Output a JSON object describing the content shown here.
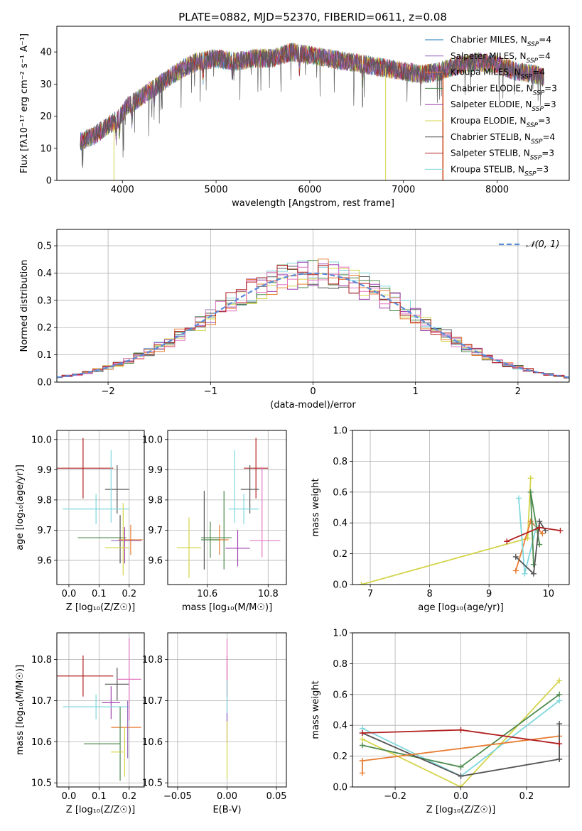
{
  "figure_title": "PLATE=0882, MJD=52370, FIBERID=0611, z=0.08",
  "colors": {
    "Chabrier MILES": "#1f77b4",
    "Salpeter MILES": "#9467bd",
    "Kroupa MILES": "#e87d33",
    "Chabrier ELODIE": "#4d8a4d",
    "Salpeter ELODIE": "#a040b0",
    "Kroupa ELODIE": "#d4d44a",
    "Chabrier STELIB": "#555555",
    "Salpeter STELIB": "#b22222",
    "Kroupa STELIB": "#7fd7dd",
    "pink": "#e377c2",
    "gaussian": "#5b8bd9"
  },
  "chart_data": [
    {
      "id": "spectrum",
      "type": "line",
      "title": "PLATE=0882, MJD=52370, FIBERID=0611, z=0.08",
      "xlabel": "wavelength [Angstrom, rest frame]",
      "ylabel": "Flux [fλ10⁻¹⁷ erg cm⁻² s⁻¹ A⁻¹]",
      "xlim": [
        3300,
        8770
      ],
      "ylim": [
        0,
        48
      ],
      "xticks": [
        4000,
        5000,
        6000,
        7000,
        8000
      ],
      "yticks": [
        0,
        10,
        20,
        30,
        40
      ],
      "legend_position": "top-right",
      "legend": [
        {
          "name": "Chabrier MILES",
          "sub": "SSP",
          "n": "=4",
          "color_key": "Chabrier MILES"
        },
        {
          "name": "Salpeter MILES",
          "sub": "SSP",
          "n": "=4",
          "color_key": "Salpeter MILES"
        },
        {
          "name": "Kroupa MILES",
          "sub": "SSP",
          "n": "=4",
          "color_key": "Kroupa MILES"
        },
        {
          "name": "Chabrier ELODIE",
          "sub": "SSP",
          "n": "=3",
          "color_key": "Chabrier ELODIE"
        },
        {
          "name": "Salpeter ELODIE",
          "sub": "SSP",
          "n": "=3",
          "color_key": "Salpeter ELODIE"
        },
        {
          "name": "Kroupa ELODIE",
          "sub": "SSP",
          "n": "=3",
          "color_key": "Kroupa ELODIE"
        },
        {
          "name": "Chabrier STELIB",
          "sub": "SSP",
          "n": "=4",
          "color_key": "Chabrier STELIB"
        },
        {
          "name": "Salpeter STELIB",
          "sub": "SSP",
          "n": "=3",
          "color_key": "Salpeter STELIB"
        },
        {
          "name": "Kroupa STELIB",
          "sub": "SSP",
          "n": "=3",
          "color_key": "Kroupa STELIB"
        }
      ],
      "continuum": [
        [
          3550,
          12
        ],
        [
          3700,
          14
        ],
        [
          3850,
          17
        ],
        [
          3950,
          19
        ],
        [
          4050,
          23
        ],
        [
          4200,
          26
        ],
        [
          4350,
          29
        ],
        [
          4500,
          32
        ],
        [
          4650,
          35
        ],
        [
          4800,
          37
        ],
        [
          5000,
          38
        ],
        [
          5200,
          37
        ],
        [
          5400,
          38
        ],
        [
          5600,
          38
        ],
        [
          5800,
          40
        ],
        [
          6000,
          39
        ],
        [
          6200,
          38
        ],
        [
          6400,
          37
        ],
        [
          6600,
          36
        ],
        [
          6800,
          35
        ],
        [
          7000,
          34
        ],
        [
          7200,
          33
        ],
        [
          7400,
          34
        ],
        [
          7600,
          36
        ],
        [
          7800,
          37
        ],
        [
          8000,
          36
        ],
        [
          8200,
          34
        ],
        [
          8400,
          33
        ],
        [
          8500,
          32
        ]
      ],
      "drops": [
        {
          "series": "Kroupa ELODIE",
          "x": 3910,
          "y_from": 18,
          "y_to": 0
        },
        {
          "series": "Kroupa ELODIE",
          "x": 6810,
          "y_from": 35,
          "y_to": 0
        },
        {
          "series": "Salpeter STELIB",
          "x": 7420,
          "y_from": 33,
          "y_to": 0
        },
        {
          "series": "Kroupa MILES",
          "x": 7425,
          "y_from": 33,
          "y_to": 0
        }
      ]
    },
    {
      "id": "residuals",
      "type": "line",
      "title": "",
      "xlabel": "(data-model)/error",
      "ylabel": "Normed distribution",
      "xlim": [
        -2.5,
        2.5
      ],
      "ylim": [
        0,
        0.56
      ],
      "xticks": [
        -2,
        -1,
        0,
        1,
        2
      ],
      "yticks": [
        0.0,
        0.1,
        0.2,
        0.3,
        0.4,
        0.5
      ],
      "grid": true,
      "legend_position": "top-right",
      "legend": [
        {
          "name": "𝒩(0, 1)",
          "style": "dashed",
          "color_key": "gaussian"
        }
      ],
      "bin_width": 0.1,
      "series": [
        {
          "color_key": "Kroupa STELIB",
          "offset": 0.0,
          "seed": 3
        },
        {
          "color_key": "Chabrier STELIB",
          "offset": 0.0,
          "seed": 7
        },
        {
          "color_key": "Chabrier ELODIE",
          "offset": 0.0,
          "seed": 11
        },
        {
          "color_key": "Kroupa ELODIE",
          "offset": 0.0,
          "seed": 13
        },
        {
          "color_key": "Salpeter ELODIE",
          "offset": 0.0,
          "seed": 17
        },
        {
          "color_key": "Kroupa MILES",
          "offset": 0.0,
          "seed": 19
        },
        {
          "color_key": "pink",
          "offset": 0.0,
          "seed": 23
        },
        {
          "color_key": "Salpeter STELIB",
          "offset": 0.0,
          "seed": 29
        }
      ]
    },
    {
      "id": "age_vs_Z",
      "type": "scatter",
      "title": "",
      "xlabel": "Z [log₁₀(Z/Z☉)]",
      "ylabel": "age  [log₁₀(age/yr)]",
      "xlim": [
        -0.04,
        0.25
      ],
      "ylim": [
        9.52,
        10.03
      ],
      "xticks": [
        0.0,
        0.1,
        0.2
      ],
      "yticks": [
        9.6,
        9.7,
        9.8,
        9.9,
        10.0
      ],
      "grid": true,
      "points": [
        {
          "x": 0.047,
          "y": 9.905,
          "xerr": 0.1,
          "yerr": 0.1,
          "color_key": "Salpeter STELIB"
        },
        {
          "x": 0.16,
          "y": 9.835,
          "xerr": 0.04,
          "yerr": 0.08,
          "color_key": "Chabrier STELIB"
        },
        {
          "x": 0.14,
          "y": 9.845,
          "xerr": 0.0,
          "yerr": 0.12,
          "color_key": "Kroupa STELIB"
        },
        {
          "x": 0.09,
          "y": 9.77,
          "xerr": 0.11,
          "yerr": 0.05,
          "color_key": "Kroupa STELIB"
        },
        {
          "x": 0.11,
          "y": 9.675,
          "xerr": 0.08,
          "yerr": 0.0,
          "color_key": "Chabrier ELODIE"
        },
        {
          "x": 0.17,
          "y": 9.67,
          "xerr": 0.0,
          "yerr": 0.08,
          "color_key": "Chabrier STELIB"
        },
        {
          "x": 0.205,
          "y": 9.668,
          "xerr": 0.04,
          "yerr": 0.05,
          "color_key": "Kroupa MILES"
        },
        {
          "x": 0.19,
          "y": 9.665,
          "xerr": 0.05,
          "yerr": 0.0,
          "color_key": "Salpeter MILES"
        },
        {
          "x": 0.185,
          "y": 9.65,
          "xerr": 0.0,
          "yerr": 0.06,
          "color_key": "Salpeter ELODIE"
        },
        {
          "x": 0.16,
          "y": 9.642,
          "xerr": 0.04,
          "yerr": 0.0,
          "color_key": "Kroupa ELODIE"
        },
        {
          "x": 0.18,
          "y": 9.67,
          "xerr": 0.0,
          "yerr": 0.12,
          "color_key": "Kroupa ELODIE"
        }
      ]
    },
    {
      "id": "age_vs_mass",
      "type": "scatter",
      "title": "",
      "xlabel": "mass [log₁₀(M/M☉)]",
      "ylabel": "",
      "xlim": [
        10.47,
        10.86
      ],
      "ylim": [
        9.52,
        10.03
      ],
      "xticks": [
        10.6,
        10.8
      ],
      "yticks": [
        9.6,
        9.7,
        9.8,
        9.9,
        10.0
      ],
      "grid": true,
      "points": [
        {
          "x": 10.76,
          "y": 9.905,
          "xerr": 0.04,
          "yerr": 0.1,
          "color_key": "Salpeter STELIB"
        },
        {
          "x": 10.74,
          "y": 9.835,
          "xerr": 0.03,
          "yerr": 0.08,
          "color_key": "Chabrier STELIB"
        },
        {
          "x": 10.69,
          "y": 9.845,
          "xerr": 0.0,
          "yerr": 0.12,
          "color_key": "Kroupa STELIB"
        },
        {
          "x": 10.72,
          "y": 9.77,
          "xerr": 0.05,
          "yerr": 0.05,
          "color_key": "Kroupa STELIB"
        },
        {
          "x": 10.63,
          "y": 9.675,
          "xerr": 0.05,
          "yerr": 0.0,
          "color_key": "Chabrier ELODIE"
        },
        {
          "x": 10.59,
          "y": 9.7,
          "xerr": 0.0,
          "yerr": 0.13,
          "color_key": "Chabrier STELIB"
        },
        {
          "x": 10.64,
          "y": 9.668,
          "xerr": 0.03,
          "yerr": 0.05,
          "color_key": "Kroupa MILES"
        },
        {
          "x": 10.61,
          "y": 9.668,
          "xerr": 0.03,
          "yerr": 0.06,
          "color_key": "Chabrier ELODIE"
        },
        {
          "x": 10.79,
          "y": 9.665,
          "xerr": 0.05,
          "yerr": 0.0,
          "color_key": "pink"
        },
        {
          "x": 10.7,
          "y": 9.64,
          "xerr": 0.04,
          "yerr": 0.06,
          "color_key": "Salpeter ELODIE"
        },
        {
          "x": 10.54,
          "y": 9.642,
          "xerr": 0.04,
          "yerr": 0.1,
          "color_key": "Kroupa ELODIE"
        },
        {
          "x": 10.78,
          "y": 9.76,
          "xerr": 0.0,
          "yerr": 0.15,
          "color_key": "pink"
        },
        {
          "x": 10.655,
          "y": 9.7,
          "xerr": 0.0,
          "yerr": 0.13,
          "color_key": "Chabrier ELODIE"
        }
      ]
    },
    {
      "id": "weight_vs_age",
      "type": "line",
      "title": "",
      "xlabel": "age  [log₁₀(age/yr)]",
      "ylabel": "mass weight",
      "xlim": [
        6.7,
        10.35
      ],
      "ylim": [
        0.0,
        1.0
      ],
      "xticks": [
        7,
        8,
        9,
        10
      ],
      "yticks": [
        0.0,
        0.2,
        0.4,
        0.6,
        0.8,
        1.0
      ],
      "grid": true,
      "series": [
        {
          "color_key": "Kroupa ELODIE",
          "x": [
            6.85,
            9.65,
            9.7
          ],
          "y": [
            0.0,
            0.3,
            0.69
          ]
        },
        {
          "color_key": "Kroupa MILES",
          "x": [
            9.45,
            9.7,
            9.9
          ],
          "y": [
            0.09,
            0.41,
            0.33
          ]
        },
        {
          "color_key": "Kroupa STELIB",
          "x": [
            9.5,
            9.6,
            9.8
          ],
          "y": [
            0.56,
            0.07,
            0.38
          ]
        },
        {
          "color_key": "Chabrier ELODIE",
          "x": [
            9.75,
            9.7,
            9.85
          ],
          "y": [
            0.13,
            0.6,
            0.26
          ]
        },
        {
          "color_key": "Chabrier STELIB",
          "x": [
            9.45,
            9.75,
            9.85,
            9.95
          ],
          "y": [
            0.18,
            0.07,
            0.41,
            0.35
          ]
        },
        {
          "color_key": "Salpeter STELIB",
          "x": [
            9.3,
            9.85,
            10.2
          ],
          "y": [
            0.28,
            0.37,
            0.35
          ]
        }
      ]
    },
    {
      "id": "mass_vs_Z",
      "type": "scatter",
      "title": "",
      "xlabel": "Z [log₁₀(Z/Z☉)]",
      "ylabel": "mass [log₁₀(M/M☉)]",
      "xlim": [
        -0.04,
        0.25
      ],
      "ylim": [
        10.49,
        10.865
      ],
      "xticks": [
        0.0,
        0.1,
        0.2
      ],
      "yticks": [
        10.5,
        10.6,
        10.7,
        10.8
      ],
      "grid": true,
      "points": [
        {
          "x": 0.047,
          "y": 10.76,
          "xerr": 0.1,
          "yerr": 0.05,
          "color_key": "Salpeter STELIB"
        },
        {
          "x": 0.16,
          "y": 10.74,
          "xerr": 0.04,
          "yerr": 0.04,
          "color_key": "Chabrier STELIB"
        },
        {
          "x": 0.2,
          "y": 10.752,
          "xerr": 0.04,
          "yerr": 0.1,
          "color_key": "pink"
        },
        {
          "x": 0.14,
          "y": 10.695,
          "xerr": 0.03,
          "yerr": 0.04,
          "color_key": "Salpeter ELODIE"
        },
        {
          "x": 0.09,
          "y": 10.685,
          "xerr": 0.11,
          "yerr": 0.03,
          "color_key": "Kroupa STELIB"
        },
        {
          "x": 0.19,
          "y": 10.635,
          "xerr": 0.05,
          "yerr": 0.0,
          "color_key": "Kroupa MILES"
        },
        {
          "x": 0.195,
          "y": 10.63,
          "xerr": 0.0,
          "yerr": 0.07,
          "color_key": "Salpeter MILES"
        },
        {
          "x": 0.11,
          "y": 10.595,
          "xerr": 0.06,
          "yerr": 0.0,
          "color_key": "Chabrier ELODIE"
        },
        {
          "x": 0.17,
          "y": 10.595,
          "xerr": 0.0,
          "yerr": 0.09,
          "color_key": "Chabrier ELODIE"
        },
        {
          "x": 0.16,
          "y": 10.575,
          "xerr": 0.02,
          "yerr": 0.0,
          "color_key": "Kroupa ELODIE"
        },
        {
          "x": 0.185,
          "y": 10.575,
          "xerr": 0.0,
          "yerr": 0.06,
          "color_key": "Kroupa ELODIE"
        }
      ]
    },
    {
      "id": "mass_vs_ebv",
      "type": "scatter",
      "title": "",
      "xlabel": "E(B-V)",
      "ylabel": "",
      "xlim": [
        -0.06,
        0.06
      ],
      "ylim": [
        10.49,
        10.865
      ],
      "xticks": [
        -0.05,
        0.0,
        0.05
      ],
      "yticks": [
        10.5,
        10.6,
        10.7,
        10.8
      ],
      "grid": true,
      "points": [
        {
          "x": 0.0,
          "y": 10.76,
          "xerr": 0,
          "yerr": 0.05,
          "color_key": "Salpeter STELIB"
        },
        {
          "x": 0.0,
          "y": 10.75,
          "xerr": 0,
          "yerr": 0.1,
          "color_key": "pink"
        },
        {
          "x": 0.0,
          "y": 10.7,
          "xerr": 0,
          "yerr": 0.05,
          "color_key": "Kroupa STELIB"
        },
        {
          "x": 0.0,
          "y": 10.635,
          "xerr": 0,
          "yerr": 0.035,
          "color_key": "Salpeter MILES"
        },
        {
          "x": 0.0,
          "y": 10.58,
          "xerr": 0,
          "yerr": 0.07,
          "color_key": "Kroupa ELODIE"
        }
      ]
    },
    {
      "id": "weight_vs_Z",
      "type": "line",
      "title": "",
      "xlabel": "Z [log₁₀(Z/Z☉)]",
      "ylabel": "mass weight",
      "xlim": [
        -0.33,
        0.33
      ],
      "ylim": [
        0.0,
        1.0
      ],
      "xticks": [
        -0.2,
        0.0,
        0.2
      ],
      "yticks": [
        0.0,
        0.2,
        0.4,
        0.6,
        0.8,
        1.0
      ],
      "grid": true,
      "series": [
        {
          "color_key": "Kroupa ELODIE",
          "x": [
            -0.3,
            0.0,
            0.3
          ],
          "y": [
            0.31,
            0.0,
            0.69
          ]
        },
        {
          "color_key": "Kroupa STELIB",
          "x": [
            -0.3,
            0.0,
            0.3
          ],
          "y": [
            0.38,
            0.07,
            0.56
          ]
        },
        {
          "color_key": "Chabrier ELODIE",
          "x": [
            -0.3,
            0.0,
            0.3
          ],
          "y": [
            0.27,
            0.13,
            0.6
          ]
        },
        {
          "color_key": "Chabrier STELIB",
          "x": [
            -0.3,
            0.0,
            0.3
          ],
          "y": [
            0.35,
            0.07,
            0.18
          ]
        },
        {
          "color_key": "Kroupa MILES",
          "x": [
            -0.3,
            0.3
          ],
          "y": [
            0.17,
            0.33
          ]
        },
        {
          "color_key": "Kroupa MILES",
          "x": [
            -0.3,
            -0.3
          ],
          "y": [
            0.09,
            0.17
          ]
        },
        {
          "color_key": "Chabrier STELIB",
          "x": [
            0.3,
            0.3
          ],
          "y": [
            0.18,
            0.41
          ]
        },
        {
          "color_key": "Salpeter STELIB",
          "x": [
            -0.3,
            0.0,
            0.3
          ],
          "y": [
            0.35,
            0.37,
            0.28
          ]
        }
      ]
    }
  ]
}
